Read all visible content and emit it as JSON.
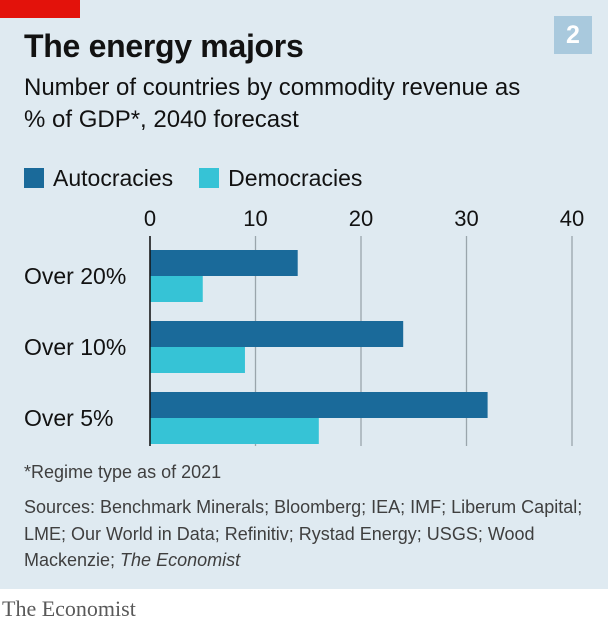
{
  "header": {
    "chart_number": "2",
    "title": "The energy majors",
    "subtitle": "Number of countries by commodity revenue as % of GDP*, 2040 forecast"
  },
  "footnote": "*Regime type as of 2021",
  "sources": {
    "prefix": "Sources: Benchmark Minerals; Bloomberg; IEA; IMF; Liberum Capital; LME; Our World in Data; Refinitiv; Rystad Energy; USGS; Wood Mackenzie; ",
    "publication": "The Economist"
  },
  "brand": "The Economist",
  "colors": {
    "autocracies": "#1a6a9a",
    "democracies": "#36c3d6",
    "background": "#dfeaf1",
    "grid": "#9aa5ac",
    "accent": "#e3120b"
  },
  "chart_data": {
    "type": "bar",
    "orientation": "horizontal",
    "title": "The energy majors",
    "subtitle": "Number of countries by commodity revenue as % of GDP*, 2040 forecast",
    "categories": [
      "Over 20%",
      "Over 10%",
      "Over 5%"
    ],
    "series": [
      {
        "name": "Autocracies",
        "values": [
          14,
          24,
          32
        ]
      },
      {
        "name": "Democracies",
        "values": [
          5,
          9,
          16
        ]
      }
    ],
    "xlim": [
      0,
      40
    ],
    "xticks": [
      0,
      10,
      20,
      30,
      40
    ],
    "grid": true,
    "legend": "top-left"
  }
}
